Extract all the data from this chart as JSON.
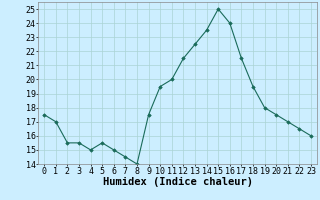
{
  "x": [
    0,
    1,
    2,
    3,
    4,
    5,
    6,
    7,
    8,
    9,
    10,
    11,
    12,
    13,
    14,
    15,
    16,
    17,
    18,
    19,
    20,
    21,
    22,
    23
  ],
  "y": [
    17.5,
    17.0,
    15.5,
    15.5,
    15.0,
    15.5,
    15.0,
    14.5,
    14.0,
    17.5,
    19.5,
    20.0,
    21.5,
    22.5,
    23.5,
    25.0,
    24.0,
    21.5,
    19.5,
    18.0,
    17.5,
    17.0,
    16.5,
    16.0
  ],
  "xlabel": "Humidex (Indice chaleur)",
  "xlim": [
    -0.5,
    23.5
  ],
  "ylim": [
    14,
    25.5
  ],
  "yticks": [
    14,
    15,
    16,
    17,
    18,
    19,
    20,
    21,
    22,
    23,
    24,
    25
  ],
  "xticks": [
    0,
    1,
    2,
    3,
    4,
    5,
    6,
    7,
    8,
    9,
    10,
    11,
    12,
    13,
    14,
    15,
    16,
    17,
    18,
    19,
    20,
    21,
    22,
    23
  ],
  "line_color": "#1a6b5a",
  "marker": "D",
  "marker_size": 1.8,
  "bg_color": "#cceeff",
  "grid_color": "#aad4d4",
  "xlabel_fontsize": 7.5,
  "tick_fontsize": 6.0
}
